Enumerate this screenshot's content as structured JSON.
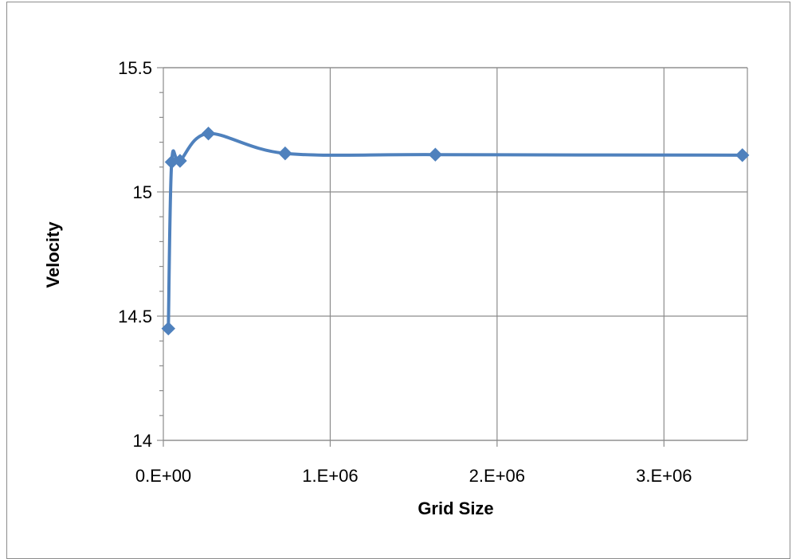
{
  "chart_data": {
    "type": "scatter",
    "title": "",
    "xlabel": "Grid Size",
    "ylabel": "Velocity",
    "xlim": [
      0,
      3500000
    ],
    "ylim": [
      14,
      15.5
    ],
    "x_ticks": [
      0,
      1000000,
      2000000,
      3000000
    ],
    "x_tick_labels": [
      "0.E+00",
      "1.E+06",
      "2.E+06",
      "3.E+06"
    ],
    "y_ticks": [
      14,
      14.5,
      15,
      15.5
    ],
    "y_tick_labels": [
      "14",
      "14.5",
      "15",
      "15.5"
    ],
    "y_minor_step": 0.1,
    "grid": true,
    "legend": "none",
    "smoothed_line": true,
    "series": [
      {
        "color": "#4f81bd",
        "marker": "diamond",
        "x": [
          30000,
          50000,
          100000,
          270000,
          730000,
          1630000,
          3470000
        ],
        "y": [
          14.45,
          15.12,
          15.125,
          15.235,
          15.155,
          15.15,
          15.148
        ]
      }
    ]
  }
}
